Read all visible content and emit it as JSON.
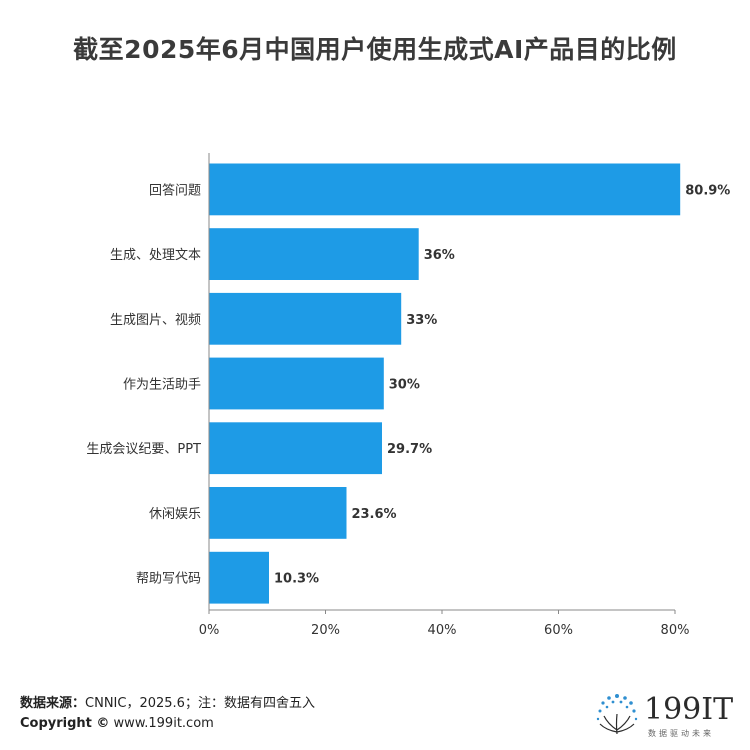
{
  "title": "截至2025年6月中国用户使用生成式AI产品目的比例",
  "chart_data": {
    "type": "bar",
    "orientation": "horizontal",
    "categories": [
      "回答问题",
      "生成、处理文本",
      "生成图片、视频",
      "作为生活助手",
      "生成会议纪要、PPT",
      "休闲娱乐",
      "帮助写代码"
    ],
    "values": [
      80.9,
      36,
      33,
      30,
      29.7,
      23.6,
      10.3
    ],
    "value_labels": [
      "80.9%",
      "36%",
      "33%",
      "30%",
      "29.7%",
      "23.6%",
      "10.3%"
    ],
    "xticks": [
      "0%",
      "20%",
      "40%",
      "60%",
      "80%"
    ],
    "xlim": [
      0,
      80
    ],
    "bar_color": "#1e9be6",
    "grid": false,
    "legend": "none"
  },
  "footer": {
    "source_label": "数据来源：",
    "source_text": "CNNIC，2025.6；注：数据有四舍五入",
    "copyright_label": "Copyright ©",
    "copyright_text": " www.199it.com"
  },
  "brand": {
    "name": "199IT",
    "tagline": "数据驱动未来",
    "icon": "dandelion-logo-icon"
  }
}
